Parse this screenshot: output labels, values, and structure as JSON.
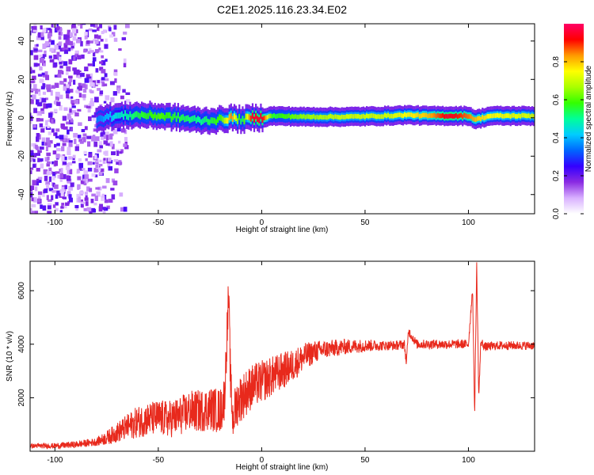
{
  "title": "C2E1.2025.116.23.34.E02",
  "chart_data": [
    {
      "type": "heatmap",
      "xlabel": "Height of straight line (km)",
      "ylabel": "Frequency (Hz)",
      "xlim": [
        -112,
        132
      ],
      "ylim": [
        -50,
        49
      ],
      "x_ticks": [
        -100,
        -50,
        0,
        50,
        100
      ],
      "x_tick_labels": [
        "-100",
        "-50",
        "0",
        "50",
        "100"
      ],
      "y_ticks": [
        -40,
        -20,
        0,
        20,
        40
      ],
      "y_tick_labels": [
        "-40",
        "-20",
        "0",
        "20",
        "40"
      ],
      "colorbar": {
        "label": "Normalized spectral amplitude",
        "range": [
          0,
          1
        ],
        "ticks": [
          0.0,
          0.2,
          0.4,
          0.6,
          0.8
        ],
        "tick_labels": [
          "0.0",
          "0.2",
          "0.4",
          "0.6",
          "0.8"
        ],
        "colors": [
          "#ffffff",
          "#d8b0ff",
          "#8a2be2",
          "#3300ff",
          "#0066ff",
          "#00ccff",
          "#00ff99",
          "#33ff00",
          "#aaff00",
          "#ffff00",
          "#ff9900",
          "#ff0000",
          "#ff0066"
        ]
      },
      "noise_region_x": [
        -112,
        -75
      ],
      "ridge": [
        {
          "x": -80,
          "f": 0.0,
          "a": 0.35
        },
        {
          "x": -70,
          "f": 1.0,
          "a": 0.45
        },
        {
          "x": -60,
          "f": 1.5,
          "a": 0.55
        },
        {
          "x": -50,
          "f": 1.0,
          "a": 0.6
        },
        {
          "x": -40,
          "f": 0.0,
          "a": 0.55
        },
        {
          "x": -30,
          "f": -1.5,
          "a": 0.5
        },
        {
          "x": -20,
          "f": -1.0,
          "a": 0.6
        },
        {
          "x": -15,
          "f": 0.0,
          "a": 0.85
        },
        {
          "x": -10,
          "f": -1.0,
          "a": 0.5
        },
        {
          "x": -5,
          "f": 0.0,
          "a": 0.95
        },
        {
          "x": 0,
          "f": 0.0,
          "a": 0.95
        },
        {
          "x": 5,
          "f": 1.0,
          "a": 0.55
        },
        {
          "x": 20,
          "f": 0.5,
          "a": 0.65
        },
        {
          "x": 40,
          "f": 0.5,
          "a": 0.7
        },
        {
          "x": 60,
          "f": 1.0,
          "a": 0.7
        },
        {
          "x": 70,
          "f": 1.5,
          "a": 0.75
        },
        {
          "x": 80,
          "f": 1.0,
          "a": 0.8
        },
        {
          "x": 90,
          "f": 1.0,
          "a": 0.95
        },
        {
          "x": 100,
          "f": 1.0,
          "a": 0.85
        },
        {
          "x": 103,
          "f": -1.0,
          "a": 0.8
        },
        {
          "x": 110,
          "f": 1.0,
          "a": 0.75
        },
        {
          "x": 132,
          "f": 1.0,
          "a": 0.7
        }
      ]
    },
    {
      "type": "line",
      "xlabel": "Height of straight line (km)",
      "ylabel": "SNR (10 * v/v)",
      "xlim": [
        -112,
        132
      ],
      "ylim": [
        0,
        7100
      ],
      "x_ticks": [
        -100,
        -50,
        0,
        50,
        100
      ],
      "x_tick_labels": [
        "-100",
        "-50",
        "0",
        "50",
        "100"
      ],
      "y_ticks": [
        2000,
        4000,
        6000
      ],
      "y_tick_labels": [
        "2000",
        "4000",
        "6000"
      ],
      "color": "#e8291c",
      "series": [
        {
          "x": [
            -112,
            -100,
            -90,
            -80,
            -75,
            -70,
            -65,
            -60,
            -55,
            -50,
            -45,
            -40,
            -35,
            -30,
            -25,
            -20,
            -18,
            -16,
            -15,
            -14,
            -12,
            -10,
            -5,
            0,
            5,
            10,
            15,
            20,
            25,
            30,
            35,
            40,
            50,
            60,
            65,
            69,
            70,
            71,
            75,
            80,
            90,
            100,
            102,
            103,
            104,
            105,
            106,
            108,
            115,
            125,
            132
          ],
          "y": [
            200,
            200,
            250,
            350,
            500,
            700,
            900,
            1100,
            1200,
            1250,
            1200,
            1300,
            1500,
            1500,
            1600,
            1500,
            2000,
            5800,
            2500,
            1200,
            1800,
            2000,
            2400,
            2600,
            2800,
            3000,
            3200,
            3500,
            3700,
            3800,
            3850,
            3900,
            3950,
            3950,
            3950,
            4000,
            3300,
            4500,
            4000,
            4000,
            4000,
            4000,
            6100,
            1300,
            7000,
            2000,
            4100,
            3900,
            3950,
            3950,
            3950
          ]
        }
      ],
      "noise_amplitude": [
        {
          "x": -112,
          "a": 80
        },
        {
          "x": -80,
          "a": 150
        },
        {
          "x": -60,
          "a": 600
        },
        {
          "x": -30,
          "a": 800
        },
        {
          "x": -10,
          "a": 900
        },
        {
          "x": 10,
          "a": 700
        },
        {
          "x": 30,
          "a": 350
        },
        {
          "x": 60,
          "a": 180
        },
        {
          "x": 132,
          "a": 160
        }
      ]
    }
  ]
}
